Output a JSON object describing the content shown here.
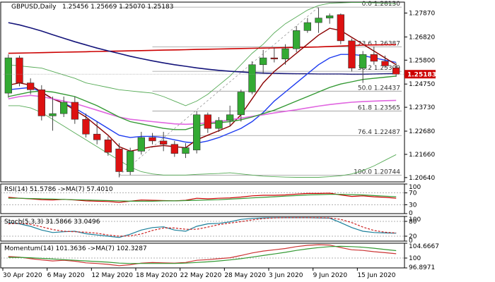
{
  "header": {
    "symbol": "GBPUSD,Daily",
    "ohlc": "1.25456 1.25669 1.25070 1.25183"
  },
  "colors": {
    "bull": "#33aa33",
    "bear": "#dd1111",
    "ma_red": "#cc0000",
    "ma_navy": "#14147a",
    "ma_blue": "#1e3cf0",
    "ma_darkred": "#8b0000",
    "ma_magenta": "#e066e0",
    "ma_green": "#339933",
    "bb": "#55aa55",
    "grid": "#999999",
    "price_tag": "#cc0000"
  },
  "chart_data": [
    {
      "type": "candlestick",
      "name": "GBPUSD,Daily",
      "ylim": [
        1.2045,
        1.2835
      ],
      "y_ticks": [
        "1.27870",
        "1.26820",
        "1.25800",
        "1.24750",
        "1.23730",
        "1.22680",
        "1.21660",
        "1.20640"
      ],
      "x_ticks": [
        {
          "label": "30 Apr 2020",
          "index": 0
        },
        {
          "label": "6 May 2020",
          "index": 4
        },
        {
          "label": "12 May 2020",
          "index": 8
        },
        {
          "label": "18 May 2020",
          "index": 12
        },
        {
          "label": "22 May 2020",
          "index": 16
        },
        {
          "label": "28 May 2020",
          "index": 20
        },
        {
          "label": "3 Jun 2020",
          "index": 24
        },
        {
          "label": "9 Jun 2020",
          "index": 28
        },
        {
          "label": "15 Jun 2020",
          "index": 32
        }
      ],
      "current_price": "1.25183",
      "candles": [
        {
          "o": 1.2435,
          "h": 1.2605,
          "l": 1.2415,
          "c": 1.259
        },
        {
          "o": 1.259,
          "h": 1.26,
          "l": 1.2465,
          "c": 1.248
        },
        {
          "o": 1.248,
          "h": 1.25,
          "l": 1.243,
          "c": 1.245
        },
        {
          "o": 1.245,
          "h": 1.247,
          "l": 1.2315,
          "c": 1.2335
        },
        {
          "o": 1.2335,
          "h": 1.242,
          "l": 1.227,
          "c": 1.2345
        },
        {
          "o": 1.2345,
          "h": 1.242,
          "l": 1.233,
          "c": 1.2395
        },
        {
          "o": 1.2395,
          "h": 1.242,
          "l": 1.23,
          "c": 1.232
        },
        {
          "o": 1.232,
          "h": 1.2345,
          "l": 1.224,
          "c": 1.2255
        },
        {
          "o": 1.2255,
          "h": 1.231,
          "l": 1.221,
          "c": 1.223
        },
        {
          "o": 1.223,
          "h": 1.2245,
          "l": 1.216,
          "c": 1.2175
        },
        {
          "o": 1.219,
          "h": 1.2215,
          "l": 1.2065,
          "c": 1.209
        },
        {
          "o": 1.209,
          "h": 1.2195,
          "l": 1.2075,
          "c": 1.218
        },
        {
          "o": 1.218,
          "h": 1.2265,
          "l": 1.2165,
          "c": 1.224
        },
        {
          "o": 1.224,
          "h": 1.226,
          "l": 1.221,
          "c": 1.2225
        },
        {
          "o": 1.2225,
          "h": 1.2265,
          "l": 1.218,
          "c": 1.221
        },
        {
          "o": 1.221,
          "h": 1.2225,
          "l": 1.2155,
          "c": 1.217
        },
        {
          "o": 1.217,
          "h": 1.2215,
          "l": 1.215,
          "c": 1.2195
        },
        {
          "o": 1.2185,
          "h": 1.2355,
          "l": 1.217,
          "c": 1.234
        },
        {
          "o": 1.234,
          "h": 1.235,
          "l": 1.226,
          "c": 1.228
        },
        {
          "o": 1.228,
          "h": 1.233,
          "l": 1.2265,
          "c": 1.2315
        },
        {
          "o": 1.2315,
          "h": 1.238,
          "l": 1.229,
          "c": 1.234
        },
        {
          "o": 1.234,
          "h": 1.245,
          "l": 1.231,
          "c": 1.244
        },
        {
          "o": 1.244,
          "h": 1.2575,
          "l": 1.243,
          "c": 1.256
        },
        {
          "o": 1.256,
          "h": 1.2625,
          "l": 1.252,
          "c": 1.259
        },
        {
          "o": 1.259,
          "h": 1.2635,
          "l": 1.257,
          "c": 1.2585
        },
        {
          "o": 1.2585,
          "h": 1.265,
          "l": 1.256,
          "c": 1.263
        },
        {
          "o": 1.263,
          "h": 1.273,
          "l": 1.2615,
          "c": 1.271
        },
        {
          "o": 1.271,
          "h": 1.2765,
          "l": 1.27,
          "c": 1.2745
        },
        {
          "o": 1.2745,
          "h": 1.281,
          "l": 1.27,
          "c": 1.2765
        },
        {
          "o": 1.2765,
          "h": 1.2785,
          "l": 1.274,
          "c": 1.2775
        },
        {
          "o": 1.278,
          "h": 1.2785,
          "l": 1.265,
          "c": 1.2665
        },
        {
          "o": 1.2665,
          "h": 1.2675,
          "l": 1.253,
          "c": 1.2545
        },
        {
          "o": 1.2545,
          "h": 1.262,
          "l": 1.248,
          "c": 1.2605
        },
        {
          "o": 1.2605,
          "h": 1.264,
          "l": 1.256,
          "c": 1.2575
        },
        {
          "o": 1.2575,
          "h": 1.26,
          "l": 1.2545,
          "c": 1.2555
        },
        {
          "o": 1.2546,
          "h": 1.2567,
          "l": 1.2507,
          "c": 1.2518
        }
      ],
      "moving_averages": [
        {
          "color": "#cc0000",
          "width": 1.6,
          "values": [
            1.261,
            1.2611,
            1.2612,
            1.2613,
            1.2614,
            1.2615,
            1.2616,
            1.2617,
            1.2618,
            1.2619,
            1.262,
            1.2621,
            1.2622,
            1.2623,
            1.2624,
            1.2625,
            1.2626,
            1.2627,
            1.2628,
            1.2629,
            1.263,
            1.2631,
            1.2632,
            1.2633,
            1.2634,
            1.2635,
            1.2636,
            1.2637,
            1.2638,
            1.264,
            1.2642,
            1.2644,
            1.2646,
            1.2647,
            1.2648,
            1.2648
          ]
        },
        {
          "color": "#14147a",
          "width": 1.6,
          "values": [
            1.2745,
            1.2735,
            1.2722,
            1.2708,
            1.2692,
            1.2676,
            1.2661,
            1.2647,
            1.2633,
            1.2621,
            1.2609,
            1.2597,
            1.2587,
            1.2577,
            1.2568,
            1.256,
            1.2553,
            1.2546,
            1.254,
            1.2535,
            1.2531,
            1.2528,
            1.2525,
            1.2523,
            1.2522,
            1.2521,
            1.252,
            1.252,
            1.2519,
            1.2519,
            1.2519,
            1.2518,
            1.2518,
            1.2519,
            1.252,
            1.2521
          ]
        },
        {
          "color": "#1e3cf0",
          "width": 1.4,
          "values": [
            1.245,
            1.2455,
            1.246,
            1.244,
            1.241,
            1.239,
            1.237,
            1.234,
            1.231,
            1.228,
            1.225,
            1.224,
            1.2245,
            1.2245,
            1.224,
            1.223,
            1.222,
            1.2215,
            1.2225,
            1.224,
            1.226,
            1.228,
            1.231,
            1.235,
            1.24,
            1.244,
            1.248,
            1.252,
            1.256,
            1.259,
            1.2605,
            1.2605,
            1.26,
            1.259,
            1.258,
            1.257
          ]
        },
        {
          "color": "#8b0000",
          "width": 1.4,
          "values": [
            1.247,
            1.248,
            1.247,
            1.244,
            1.241,
            1.239,
            1.236,
            1.233,
            1.229,
            1.225,
            1.22,
            1.218,
            1.219,
            1.22,
            1.2205,
            1.22,
            1.2195,
            1.223,
            1.225,
            1.227,
            1.229,
            1.234,
            1.241,
            1.248,
            1.253,
            1.257,
            1.261,
            1.265,
            1.269,
            1.272,
            1.271,
            1.268,
            1.265,
            1.262,
            1.259,
            1.256
          ]
        },
        {
          "color": "#e066e0",
          "width": 1.6,
          "values": [
            1.241,
            1.242,
            1.2425,
            1.242,
            1.241,
            1.24,
            1.239,
            1.2375,
            1.236,
            1.2345,
            1.233,
            1.232,
            1.2315,
            1.231,
            1.2305,
            1.23,
            1.2298,
            1.23,
            1.2305,
            1.231,
            1.2318,
            1.2325,
            1.2333,
            1.234,
            1.2348,
            1.2355,
            1.2362,
            1.237,
            1.2378,
            1.2385,
            1.239,
            1.2395,
            1.2398,
            1.24,
            1.2402,
            1.2403
          ]
        },
        {
          "color": "#339933",
          "width": 1.4,
          "values": [
            1.242,
            1.243,
            1.244,
            1.2445,
            1.244,
            1.243,
            1.242,
            1.24,
            1.238,
            1.2355,
            1.233,
            1.231,
            1.23,
            1.229,
            1.228,
            1.2275,
            1.2275,
            1.229,
            1.23,
            1.2305,
            1.231,
            1.2318,
            1.233,
            1.2345,
            1.236,
            1.238,
            1.24,
            1.242,
            1.244,
            1.246,
            1.2475,
            1.2485,
            1.2495,
            1.25,
            1.2505,
            1.251
          ]
        }
      ],
      "bollinger_upper": [
        1.256,
        1.2555,
        1.255,
        1.2545,
        1.253,
        1.2515,
        1.25,
        1.248,
        1.247,
        1.246,
        1.245,
        1.2445,
        1.244,
        1.2435,
        1.242,
        1.24,
        1.238,
        1.24,
        1.243,
        1.247,
        1.251,
        1.256,
        1.261,
        1.265,
        1.27,
        1.274,
        1.277,
        1.28,
        1.282,
        1.283,
        1.2832,
        1.2833,
        1.2833,
        1.2832,
        1.283,
        1.2828
      ],
      "bollinger_lower": [
        1.238,
        1.238,
        1.237,
        1.235,
        1.232,
        1.229,
        1.226,
        1.223,
        1.22,
        1.217,
        1.214,
        1.211,
        1.209,
        1.208,
        1.2075,
        1.2075,
        1.2075,
        1.2078,
        1.208,
        1.2082,
        1.2085,
        1.208,
        1.2075,
        1.207,
        1.2068,
        1.2066,
        1.2065,
        1.2065,
        1.2065,
        1.2068,
        1.2072,
        1.208,
        1.2095,
        1.2115,
        1.214,
        1.2165
      ],
      "fib_levels": [
        {
          "label": "0.0 1.28130",
          "value": 1.2813
        },
        {
          "label": "23.6 1.26387",
          "value": 1.26387
        },
        {
          "label": "38.2 1.25309",
          "value": 1.25309
        },
        {
          "label": "50.0 1.24437",
          "value": 1.24437
        },
        {
          "label": "61.8 1.23565",
          "value": 1.23565
        },
        {
          "label": "76.4 1.22487",
          "value": 1.22487
        },
        {
          "label": "100.0 1.20744",
          "value": 1.20744
        }
      ]
    },
    {
      "type": "line",
      "name": "RSI(14) 51.5786 ->MA(7) 57.4010",
      "ylim": [
        0,
        100
      ],
      "y_ticks": [
        "100",
        "70",
        "30",
        "0"
      ],
      "levels": [
        70,
        30
      ],
      "series": [
        {
          "color": "#cc0000",
          "values": [
            55,
            52,
            50,
            47,
            46,
            48,
            46,
            43,
            42,
            41,
            38,
            42,
            46,
            45,
            44,
            43,
            45,
            52,
            50,
            52,
            53,
            56,
            60,
            62,
            62,
            63,
            66,
            68,
            68,
            69,
            63,
            58,
            60,
            57,
            55,
            52
          ]
        },
        {
          "color": "#339933",
          "values": [
            52,
            52,
            51,
            50,
            49,
            48,
            47,
            46,
            45,
            44,
            43,
            42,
            42,
            42,
            43,
            43,
            44,
            45,
            46,
            47,
            49,
            51,
            53,
            55,
            57,
            59,
            61,
            63,
            64,
            65,
            65,
            64,
            63,
            61,
            59,
            57
          ]
        }
      ]
    },
    {
      "type": "line",
      "name": "Stoch(5,3,3) 31.5866 33.0496",
      "ylim": [
        0,
        100
      ],
      "y_ticks": [
        "100",
        "80",
        "20",
        "0"
      ],
      "levels": [
        80,
        20
      ],
      "series": [
        {
          "color": "#1a7f9a",
          "values": [
            75,
            70,
            60,
            45,
            35,
            38,
            40,
            30,
            25,
            20,
            15,
            28,
            45,
            55,
            58,
            45,
            40,
            60,
            70,
            72,
            78,
            88,
            92,
            94,
            95,
            95,
            95,
            95,
            94,
            93,
            75,
            55,
            40,
            35,
            33,
            32
          ]
        },
        {
          "color": "#cc2222",
          "dash": true,
          "values": [
            70,
            72,
            68,
            58,
            47,
            40,
            38,
            36,
            32,
            25,
            20,
            21,
            29,
            43,
            53,
            53,
            48,
            48,
            57,
            67,
            73,
            79,
            86,
            91,
            94,
            95,
            95,
            95,
            95,
            94,
            88,
            75,
            57,
            43,
            36,
            33
          ]
        }
      ]
    },
    {
      "type": "line",
      "name": "Momentum(14) 101.3636 ->MA(7) 102.3287",
      "ylim": [
        96.8971,
        104.6667
      ],
      "y_ticks": [
        "104.6667",
        "100",
        "96.8971"
      ],
      "levels": [
        100
      ],
      "series": [
        {
          "color": "#cc3333",
          "values": [
            100.5,
            100.3,
            99.8,
            99.4,
            99.1,
            99.3,
            99.0,
            98.5,
            98.3,
            98.0,
            97.6,
            97.9,
            98.4,
            98.6,
            98.5,
            98.4,
            98.6,
            99.3,
            99.5,
            99.8,
            100.1,
            100.8,
            101.6,
            102.2,
            102.6,
            103.0,
            103.6,
            104.0,
            104.2,
            104.1,
            103.3,
            102.6,
            102.4,
            102.0,
            101.7,
            101.36
          ]
        },
        {
          "color": "#339933",
          "values": [
            100.2,
            100.2,
            100.1,
            99.9,
            99.7,
            99.5,
            99.3,
            99.1,
            98.9,
            98.7,
            98.4,
            98.3,
            98.3,
            98.3,
            98.3,
            98.3,
            98.4,
            98.6,
            98.8,
            99.1,
            99.4,
            99.8,
            100.3,
            100.8,
            101.3,
            101.8,
            102.4,
            102.9,
            103.3,
            103.6,
            103.7,
            103.6,
            103.4,
            103.1,
            102.7,
            102.33
          ]
        }
      ]
    }
  ]
}
